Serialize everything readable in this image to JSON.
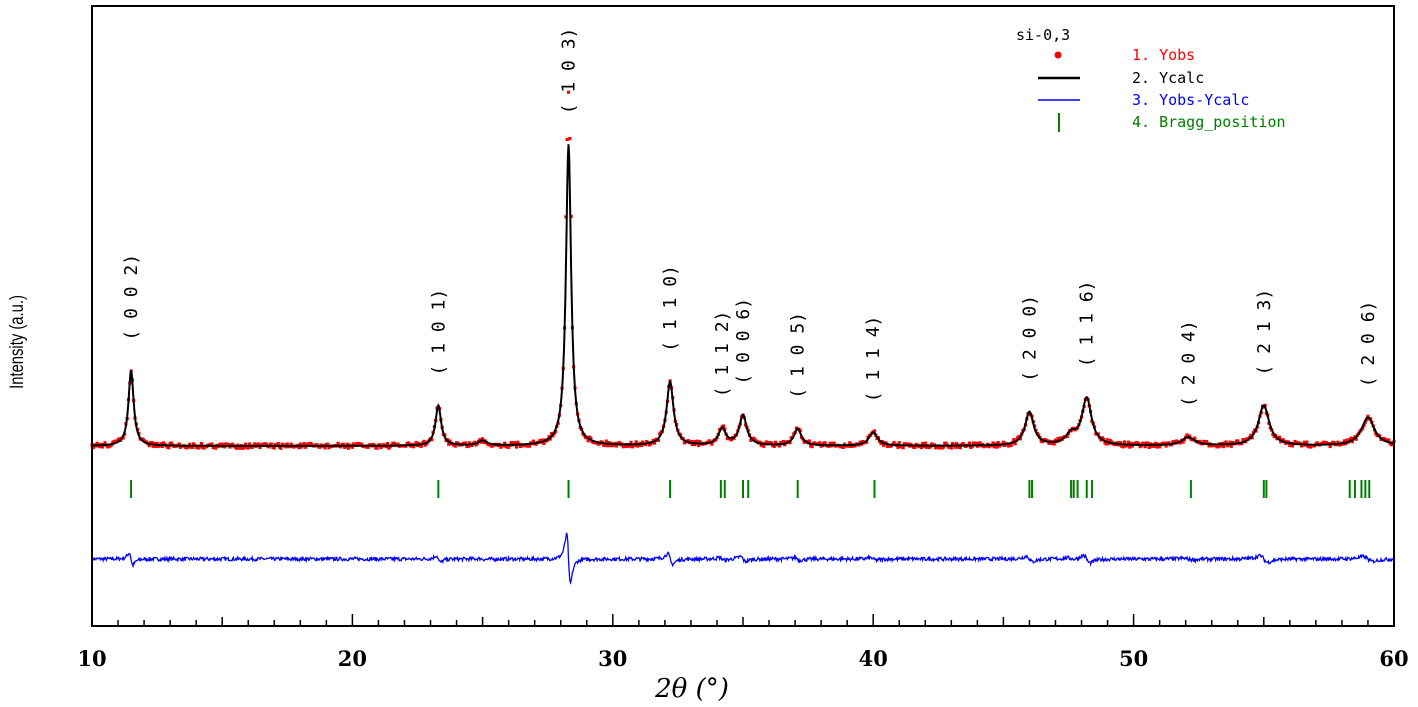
{
  "chart_data": {
    "type": "line",
    "title": "si-0,3",
    "xlabel": "2θ (°)",
    "ylabel": "Intensity (a.u.)",
    "xlim": [
      10,
      60
    ],
    "xticks": [
      10,
      20,
      30,
      40,
      50,
      60
    ],
    "colors": {
      "yobs": "#ff0000",
      "ycalc": "#000000",
      "diff": "#0000ff",
      "bragg": "#008000"
    },
    "series": [
      {
        "name": "1.  Yobs",
        "color": "#ff0000"
      },
      {
        "name": "2.  Ycalc",
        "color": "#000000"
      },
      {
        "name": "3.  Yobs-Ycalc",
        "color": "#0000ff"
      },
      {
        "name": "4.  Bragg_position",
        "color": "#008000"
      }
    ],
    "peaks": [
      {
        "x": 11.5,
        "h": 0.225,
        "w": 0.12,
        "hkl": "( 0 0 2)"
      },
      {
        "x": 23.3,
        "h": 0.12,
        "w": 0.13,
        "hkl": "( 1 0 1)"
      },
      {
        "x": 25.0,
        "h": 0.015,
        "w": 0.2,
        "hkl": ""
      },
      {
        "x": 28.3,
        "h": 0.9,
        "w": 0.12,
        "hkl": "( 1 0 3)"
      },
      {
        "x": 32.2,
        "h": 0.19,
        "w": 0.16,
        "hkl": "( 1 1 0)"
      },
      {
        "x": 34.2,
        "h": 0.05,
        "w": 0.17,
        "hkl": "( 1 1 2)"
      },
      {
        "x": 35.0,
        "h": 0.09,
        "w": 0.17,
        "hkl": "( 0 0 6)"
      },
      {
        "x": 37.1,
        "h": 0.05,
        "w": 0.17,
        "hkl": "( 1 0 5)"
      },
      {
        "x": 40.0,
        "h": 0.04,
        "w": 0.2,
        "hkl": "( 1 1 4)"
      },
      {
        "x": 46.0,
        "h": 0.1,
        "w": 0.2,
        "hkl": "( 2 0 0)"
      },
      {
        "x": 47.6,
        "h": 0.03,
        "w": 0.25,
        "hkl": ""
      },
      {
        "x": 48.2,
        "h": 0.14,
        "w": 0.22,
        "hkl": "( 1 1 6)"
      },
      {
        "x": 52.1,
        "h": 0.025,
        "w": 0.3,
        "hkl": "( 2 0 4)"
      },
      {
        "x": 55.0,
        "h": 0.12,
        "w": 0.25,
        "hkl": "( 2 1 3)"
      },
      {
        "x": 59.0,
        "h": 0.085,
        "w": 0.3,
        "hkl": "( 2 0 6)"
      }
    ],
    "bragg_positions": [
      11.5,
      23.3,
      28.3,
      32.2,
      34.15,
      34.3,
      35.0,
      35.2,
      37.1,
      40.05,
      46.0,
      46.1,
      47.6,
      47.7,
      47.85,
      48.2,
      48.4,
      52.2,
      55.0,
      55.1,
      58.3,
      58.5,
      58.75,
      58.9,
      59.05
    ]
  }
}
